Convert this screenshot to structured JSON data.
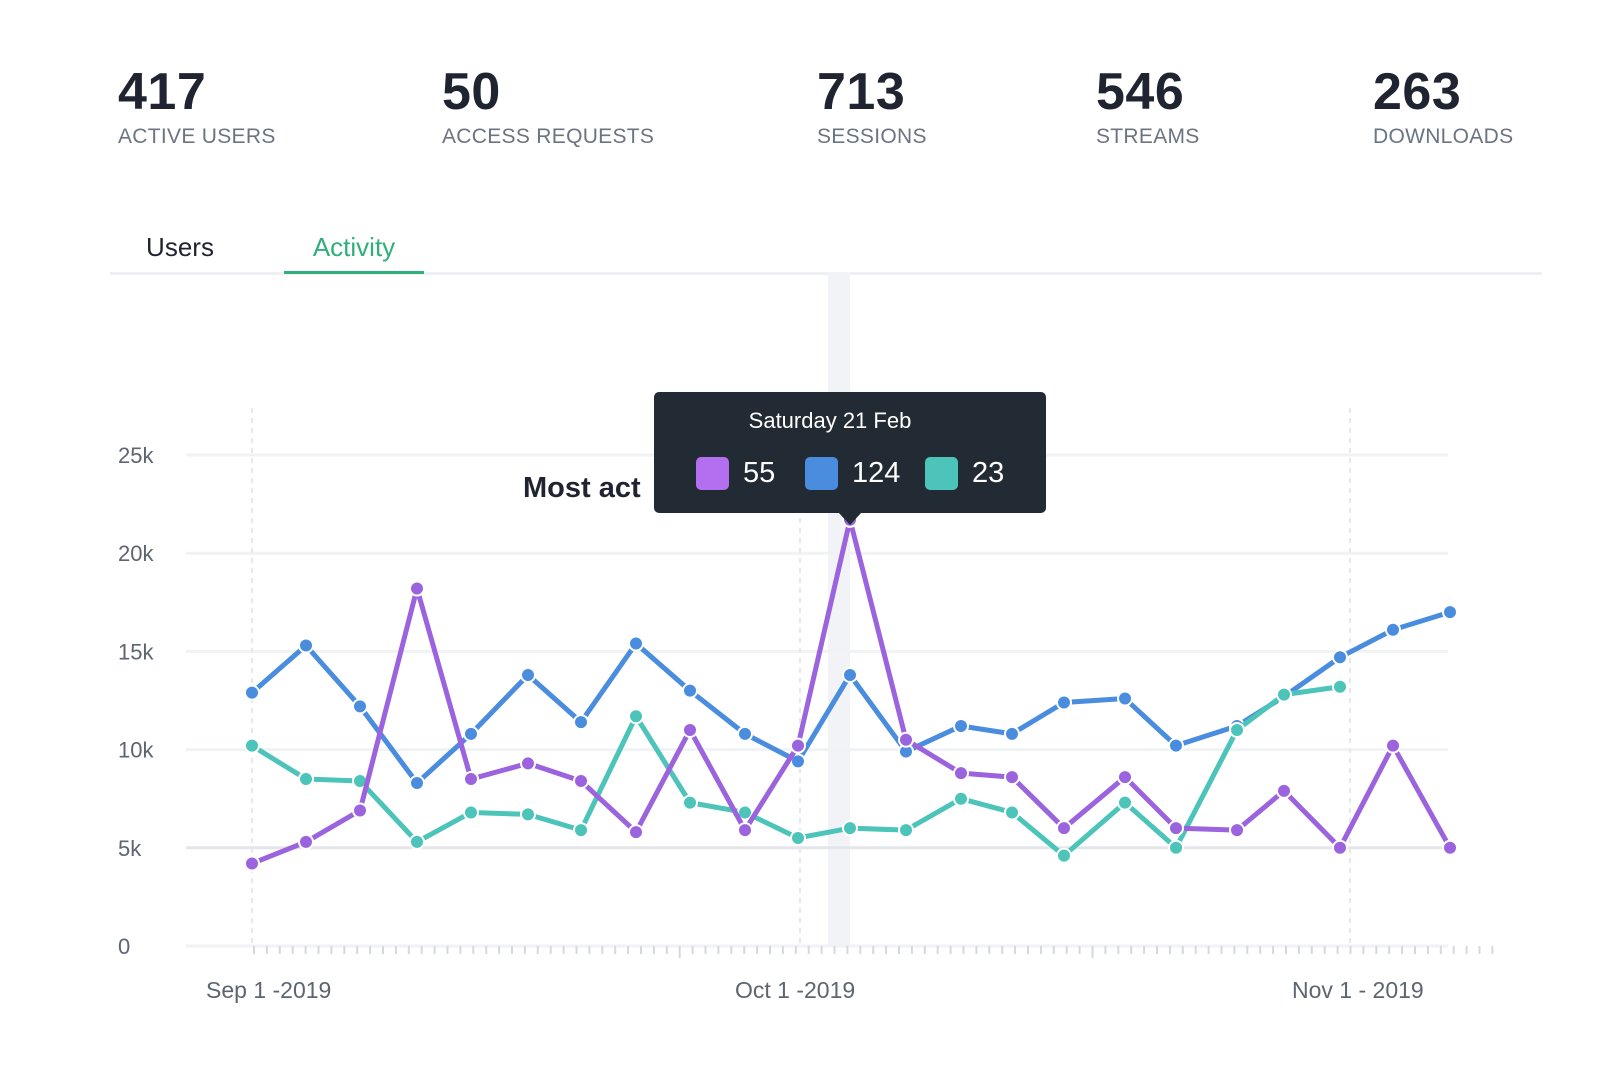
{
  "stats": [
    {
      "value": "417",
      "label": "ACTIVE USERS"
    },
    {
      "value": "50",
      "label": "ACCESS REQUESTS"
    },
    {
      "value": "713",
      "label": "SESSIONS"
    },
    {
      "value": "546",
      "label": "STREAMS"
    },
    {
      "value": "263",
      "label": "DOWNLOADS"
    }
  ],
  "tabs": [
    {
      "label": "Users",
      "active": false
    },
    {
      "label": "Activity",
      "active": true
    }
  ],
  "tooltip": {
    "date": "Saturday 21 Feb",
    "values": [
      "55",
      "124",
      "23"
    ]
  },
  "colors": {
    "purple": "#9b63dd",
    "blue": "#4a8ddf",
    "teal": "#4cc4b9",
    "accent": "#2fb07a",
    "tooltip_bg": "#222a33"
  },
  "chart_data": {
    "type": "line",
    "title": "Most act",
    "xlabel": "",
    "ylabel": "",
    "ylim": [
      0,
      25000
    ],
    "yticks": [
      0,
      5000,
      10000,
      15000,
      20000,
      25000
    ],
    "ytick_labels": [
      "0",
      "5k",
      "10k",
      "15k",
      "20k",
      "25k"
    ],
    "xtick_labels": [
      "Sep 1 -2019",
      "Oct 1 -2019",
      "Nov 1 - 2019"
    ],
    "x": [
      1,
      2,
      3,
      4,
      5,
      6,
      7,
      8,
      9,
      10,
      11,
      12,
      13,
      14,
      15,
      16,
      17,
      18,
      19,
      20,
      21,
      22,
      23,
      24,
      25,
      26,
      27,
      28,
      29,
      30
    ],
    "series": [
      {
        "color": "#9b63dd",
        "values": [
          4200,
          5300,
          6900,
          18200,
          8500,
          9300,
          8400,
          5800,
          11000,
          5900,
          10200,
          21700,
          10500,
          8800,
          8600,
          6000,
          8600,
          6000,
          5900,
          7900,
          5000,
          10200,
          5000,
          null,
          null,
          null,
          null,
          null,
          null,
          null
        ]
      },
      {
        "color": "#4a8ddf",
        "values": [
          12900,
          15300,
          12200,
          8300,
          10800,
          13800,
          11400,
          15400,
          13000,
          10800,
          9400,
          13800,
          9900,
          11200,
          10800,
          12400,
          12600,
          10200,
          11200,
          12700,
          14700,
          16100,
          17000,
          null,
          null,
          null,
          null,
          null,
          null,
          null
        ]
      },
      {
        "color": "#4cc4b9",
        "values": [
          10200,
          8500,
          8400,
          5300,
          6800,
          6700,
          5900,
          11700,
          7300,
          6800,
          5500,
          6000,
          5900,
          7500,
          6800,
          4600,
          7300,
          5000,
          11000,
          12800,
          13200,
          null,
          null,
          null,
          null,
          null,
          null,
          null,
          null,
          null
        ]
      }
    ]
  }
}
